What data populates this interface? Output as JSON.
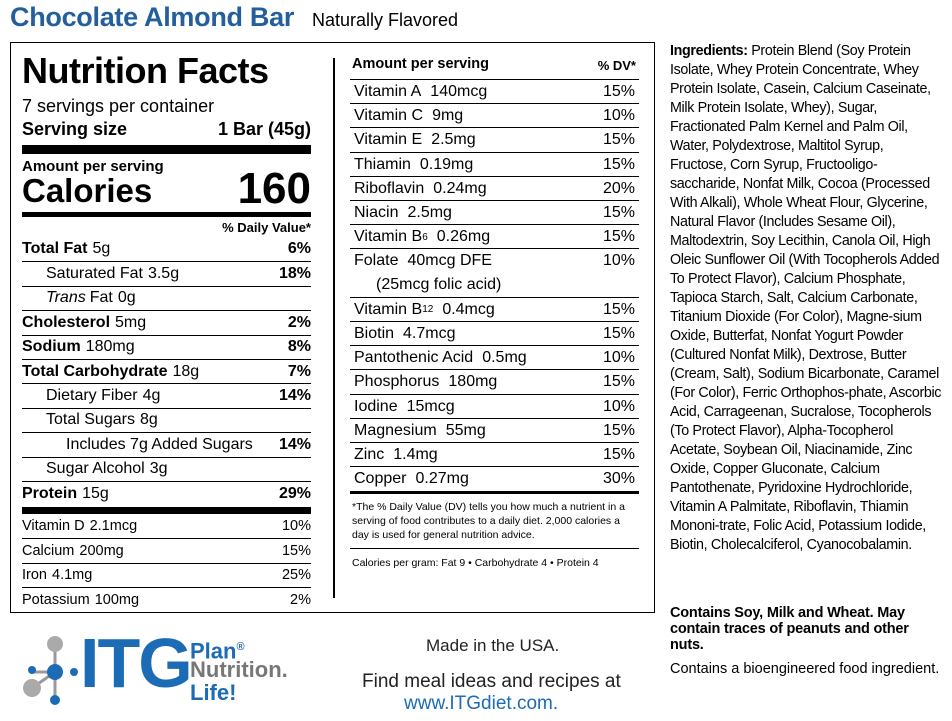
{
  "header": {
    "title": "Chocolate Almond Bar",
    "subtitle": "Naturally Flavored"
  },
  "facts": {
    "title": "Nutrition Facts",
    "servings": "7 servings per container",
    "serving_size_label": "Serving size",
    "serving_size": "1 Bar (45g)",
    "amount_label": "Amount per serving",
    "calories_label": "Calories",
    "calories": "160",
    "dv_header": "% Daily Value*",
    "nutrients": [
      {
        "name": "Total Fat",
        "amount": "5g",
        "dv": "6%"
      },
      {
        "name": "Saturated Fat",
        "amount": "3.5g",
        "dv": "18%"
      },
      {
        "prefix": "Trans",
        "name": "Fat",
        "amount": "0g"
      },
      {
        "name": "Cholesterol",
        "amount": "5mg",
        "dv": "2%"
      },
      {
        "name": "Sodium",
        "amount": "180mg",
        "dv": "8%"
      },
      {
        "name": "Total Carbohydrate",
        "amount": "18g",
        "dv": "7%"
      },
      {
        "name": "Dietary Fiber",
        "amount": "4g",
        "dv": "14%"
      },
      {
        "name": "Total Sugars",
        "amount": "8g"
      },
      {
        "name": "Includes 7g Added Sugars",
        "dv": "14%"
      },
      {
        "name": "Sugar Alcohol",
        "amount": "3g"
      },
      {
        "name": "Protein",
        "amount": "15g",
        "dv": "29%"
      }
    ],
    "minerals": [
      {
        "name": "Vitamin D",
        "amount": "2.1mcg",
        "dv": "10%"
      },
      {
        "name": "Calcium",
        "amount": "200mg",
        "dv": "15%"
      },
      {
        "name": "Iron",
        "amount": "4.1mg",
        "dv": "25%"
      },
      {
        "name": "Potassium",
        "amount": "100mg",
        "dv": "2%"
      }
    ],
    "right_header": "Amount per serving",
    "right_dv_header": "% DV*",
    "vitamins": [
      {
        "name": "Vitamin A",
        "amount": "140mcg",
        "dv": "15%"
      },
      {
        "name": "Vitamin C",
        "amount": "9mg",
        "dv": "10%"
      },
      {
        "name": "Vitamin E",
        "amount": "2.5mg",
        "dv": "15%"
      },
      {
        "name": "Thiamin",
        "amount": "0.19mg",
        "dv": "15%"
      },
      {
        "name": "Riboflavin",
        "amount": "0.24mg",
        "dv": "20%"
      },
      {
        "name": "Niacin",
        "amount": "2.5mg",
        "dv": "15%"
      },
      {
        "name": "Vitamin B",
        "sub": "6",
        "amount": "0.26mg",
        "dv": "15%"
      },
      {
        "name": "Folate",
        "amount": "40mcg DFE",
        "note": "(25mcg folic acid)",
        "dv": "10%"
      },
      {
        "name": "Vitamin B",
        "sub": "12",
        "amount": "0.4mcg",
        "dv": "15%"
      },
      {
        "name": "Biotin",
        "amount": "4.7mcg",
        "dv": "15%"
      },
      {
        "name": "Pantothenic Acid",
        "amount": "0.5mg",
        "dv": "10%"
      },
      {
        "name": "Phosphorus",
        "amount": "180mg",
        "dv": "15%"
      },
      {
        "name": "Iodine",
        "amount": "15mcg",
        "dv": "10%"
      },
      {
        "name": "Magnesium",
        "amount": "55mg",
        "dv": "15%"
      },
      {
        "name": "Zinc",
        "amount": "1.4mg",
        "dv": "15%"
      },
      {
        "name": "Copper",
        "amount": "0.27mg",
        "dv": "30%"
      }
    ],
    "footnote": "*The % Daily Value (DV) tells you how much a nutrient in a serving of food contributes to a daily diet. 2,000 calories a day is used for general nutrition advice.",
    "calories_per_gram": "Calories per gram: Fat 9 • Carbohydrate 4 • Protein 4"
  },
  "ingredients": {
    "label": "Ingredients:",
    "text": "Protein Blend (Soy Protein Isolate, Whey Protein Concentrate, Whey Protein Isolate, Casein, Calcium Caseinate, Milk Protein Isolate, Whey), Sugar, Fractionated Palm Kernel and Palm Oil, Water, Polydextrose, Maltitol Syrup, Fructose, Corn Syrup, Fructooligo-saccharide, Nonfat Milk, Cocoa (Processed With Alkali), Whole Wheat Flour, Glycerine, Natural Flavor (Includes Sesame Oil), Maltodextrin, Soy Lecithin, Canola Oil, High Oleic Sunflower Oil (With Tocopherols Added To Protect Flavor), Calcium Phosphate, Tapioca Starch, Salt, Calcium Carbonate, Titanium Dioxide (For Color), Magne-sium Oxide, Butterfat, Nonfat Yogurt Powder (Cultured Nonfat Milk), Dextrose, Butter (Cream, Salt), Sodium Bicarbonate, Caramel (For Color), Ferric Orthophos-phate, Ascorbic Acid, Carrageenan, Sucralose, Tocopherols (To Protect Flavor), Alpha-Tocopherol Acetate, Soybean Oil, Niacinamide, Zinc Oxide, Copper Gluconate, Calcium Pantothenate, Pyridoxine Hydrochloride, Vitamin A Palmitate, Riboflavin, Thiamin Mononi-trate, Folic Acid, Potassium Iodide, Biotin, Cholecalciferol, Cyanocobalamin.",
    "allergens": "Contains Soy, Milk and Wheat. May contain traces of peanuts and other nuts.",
    "bioengineered": "Contains a bioengineered food ingredient."
  },
  "footer": {
    "logo": "ITG",
    "plan": "Plan",
    "registered": "®",
    "nutrition": "Nutrition.",
    "life": "Life!",
    "made_in": "Made in the USA.",
    "find": "Find meal ideas and recipes at",
    "url": "www.ITGdiet.com."
  }
}
